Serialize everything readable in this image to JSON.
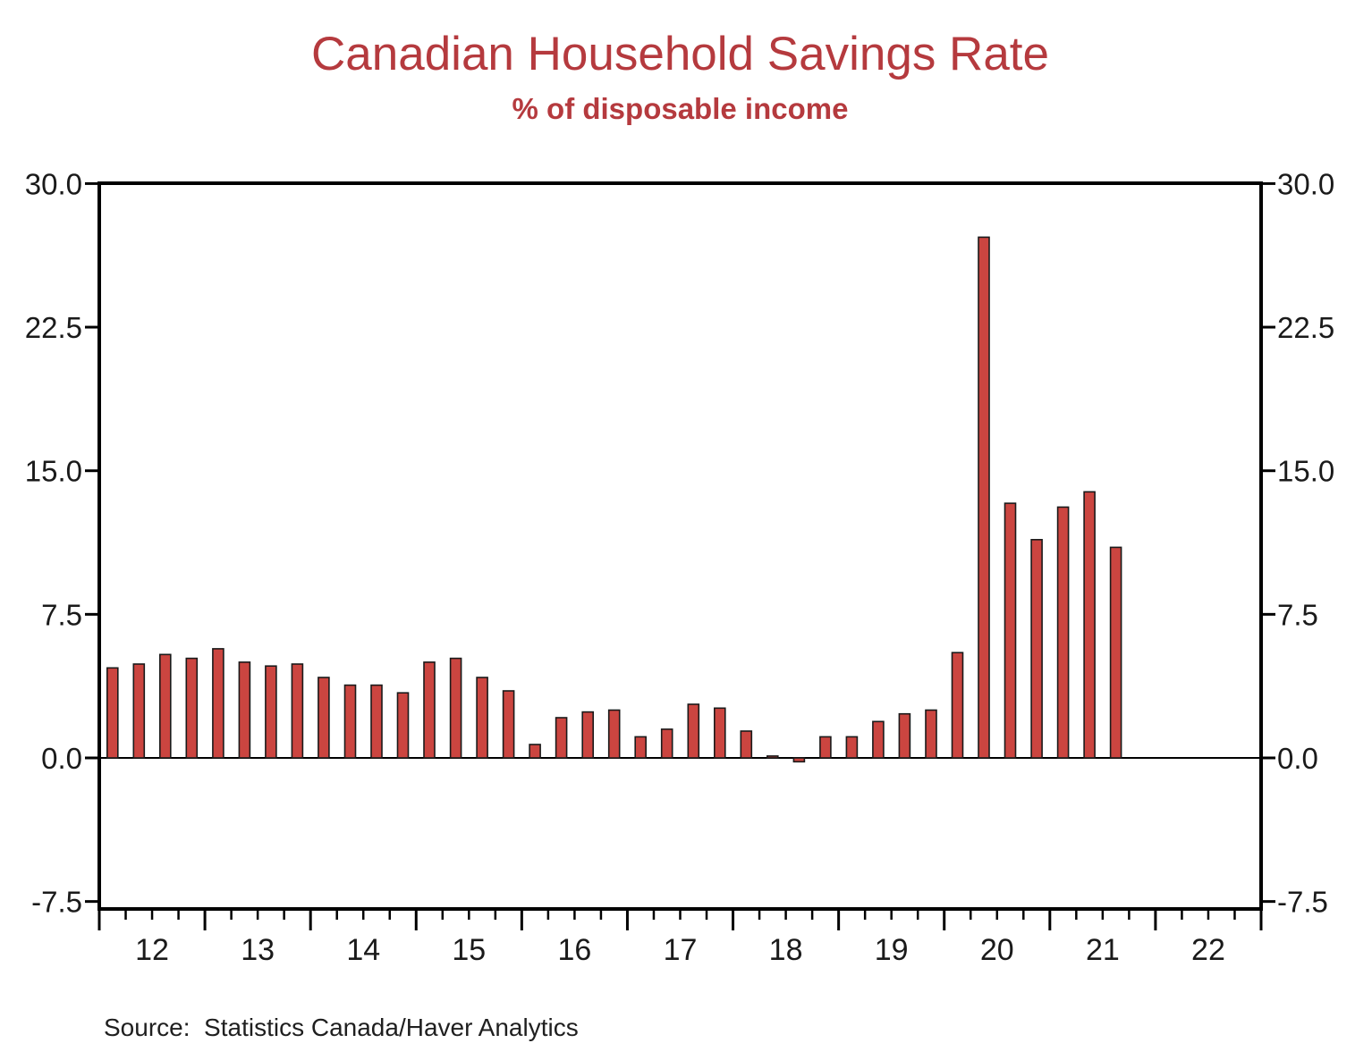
{
  "header": {
    "title": "Canadian Household Savings Rate",
    "subtitle": "% of disposable income",
    "title_color": "#b53a3e"
  },
  "footer": {
    "source": "Source:  Statistics Canada/Haver Analytics"
  },
  "colors": {
    "bar_fill": "#cb4540",
    "bar_outline": "#1a1a1a",
    "axis": "#000000",
    "tick_label": "#1a1a1a"
  },
  "chart_data": {
    "type": "bar",
    "title": "Canadian Household Savings Rate",
    "subtitle": "% of disposable income",
    "xlabel": "",
    "ylabel": "",
    "frequency": "quarterly",
    "grid": false,
    "legend": false,
    "y_axis_sides": "both",
    "ylim": [
      -7.9,
      30.0
    ],
    "yticks": [
      30.0,
      22.5,
      15.0,
      7.5,
      0.0,
      -7.5
    ],
    "ytick_labels": [
      "30.0",
      "22.5",
      "15.0",
      "7.5",
      "0.0",
      "-7.5"
    ],
    "x_year_start": 2012,
    "x_year_end": 2022,
    "xtick_labels": [
      "12",
      "13",
      "14",
      "15",
      "16",
      "17",
      "18",
      "19",
      "20",
      "21",
      "22"
    ],
    "series": [
      {
        "name": "Household savings rate, % of disposable income",
        "points": [
          {
            "period": "2012 Q1",
            "value": 4.7
          },
          {
            "period": "2012 Q2",
            "value": 4.9
          },
          {
            "period": "2012 Q3",
            "value": 5.4
          },
          {
            "period": "2012 Q4",
            "value": 5.2
          },
          {
            "period": "2013 Q1",
            "value": 5.7
          },
          {
            "period": "2013 Q2",
            "value": 5.0
          },
          {
            "period": "2013 Q3",
            "value": 4.8
          },
          {
            "period": "2013 Q4",
            "value": 4.9
          },
          {
            "period": "2014 Q1",
            "value": 4.2
          },
          {
            "period": "2014 Q2",
            "value": 3.8
          },
          {
            "period": "2014 Q3",
            "value": 3.8
          },
          {
            "period": "2014 Q4",
            "value": 3.4
          },
          {
            "period": "2015 Q1",
            "value": 5.0
          },
          {
            "period": "2015 Q2",
            "value": 5.2
          },
          {
            "period": "2015 Q3",
            "value": 4.2
          },
          {
            "period": "2015 Q4",
            "value": 3.5
          },
          {
            "period": "2016 Q1",
            "value": 0.7
          },
          {
            "period": "2016 Q2",
            "value": 2.1
          },
          {
            "period": "2016 Q3",
            "value": 2.4
          },
          {
            "period": "2016 Q4",
            "value": 2.5
          },
          {
            "period": "2017 Q1",
            "value": 1.1
          },
          {
            "period": "2017 Q2",
            "value": 1.5
          },
          {
            "period": "2017 Q3",
            "value": 2.8
          },
          {
            "period": "2017 Q4",
            "value": 2.6
          },
          {
            "period": "2018 Q1",
            "value": 1.4
          },
          {
            "period": "2018 Q2",
            "value": 0.1
          },
          {
            "period": "2018 Q3",
            "value": -0.2
          },
          {
            "period": "2018 Q4",
            "value": 1.1
          },
          {
            "period": "2019 Q1",
            "value": 1.1
          },
          {
            "period": "2019 Q2",
            "value": 1.9
          },
          {
            "period": "2019 Q3",
            "value": 2.3
          },
          {
            "period": "2019 Q4",
            "value": 2.5
          },
          {
            "period": "2020 Q1",
            "value": 5.5
          },
          {
            "period": "2020 Q2",
            "value": 27.2
          },
          {
            "period": "2020 Q3",
            "value": 13.3
          },
          {
            "period": "2020 Q4",
            "value": 11.4
          },
          {
            "period": "2021 Q1",
            "value": 13.1
          },
          {
            "period": "2021 Q2",
            "value": 13.9
          },
          {
            "period": "2021 Q3",
            "value": 11.0
          }
        ]
      }
    ]
  }
}
